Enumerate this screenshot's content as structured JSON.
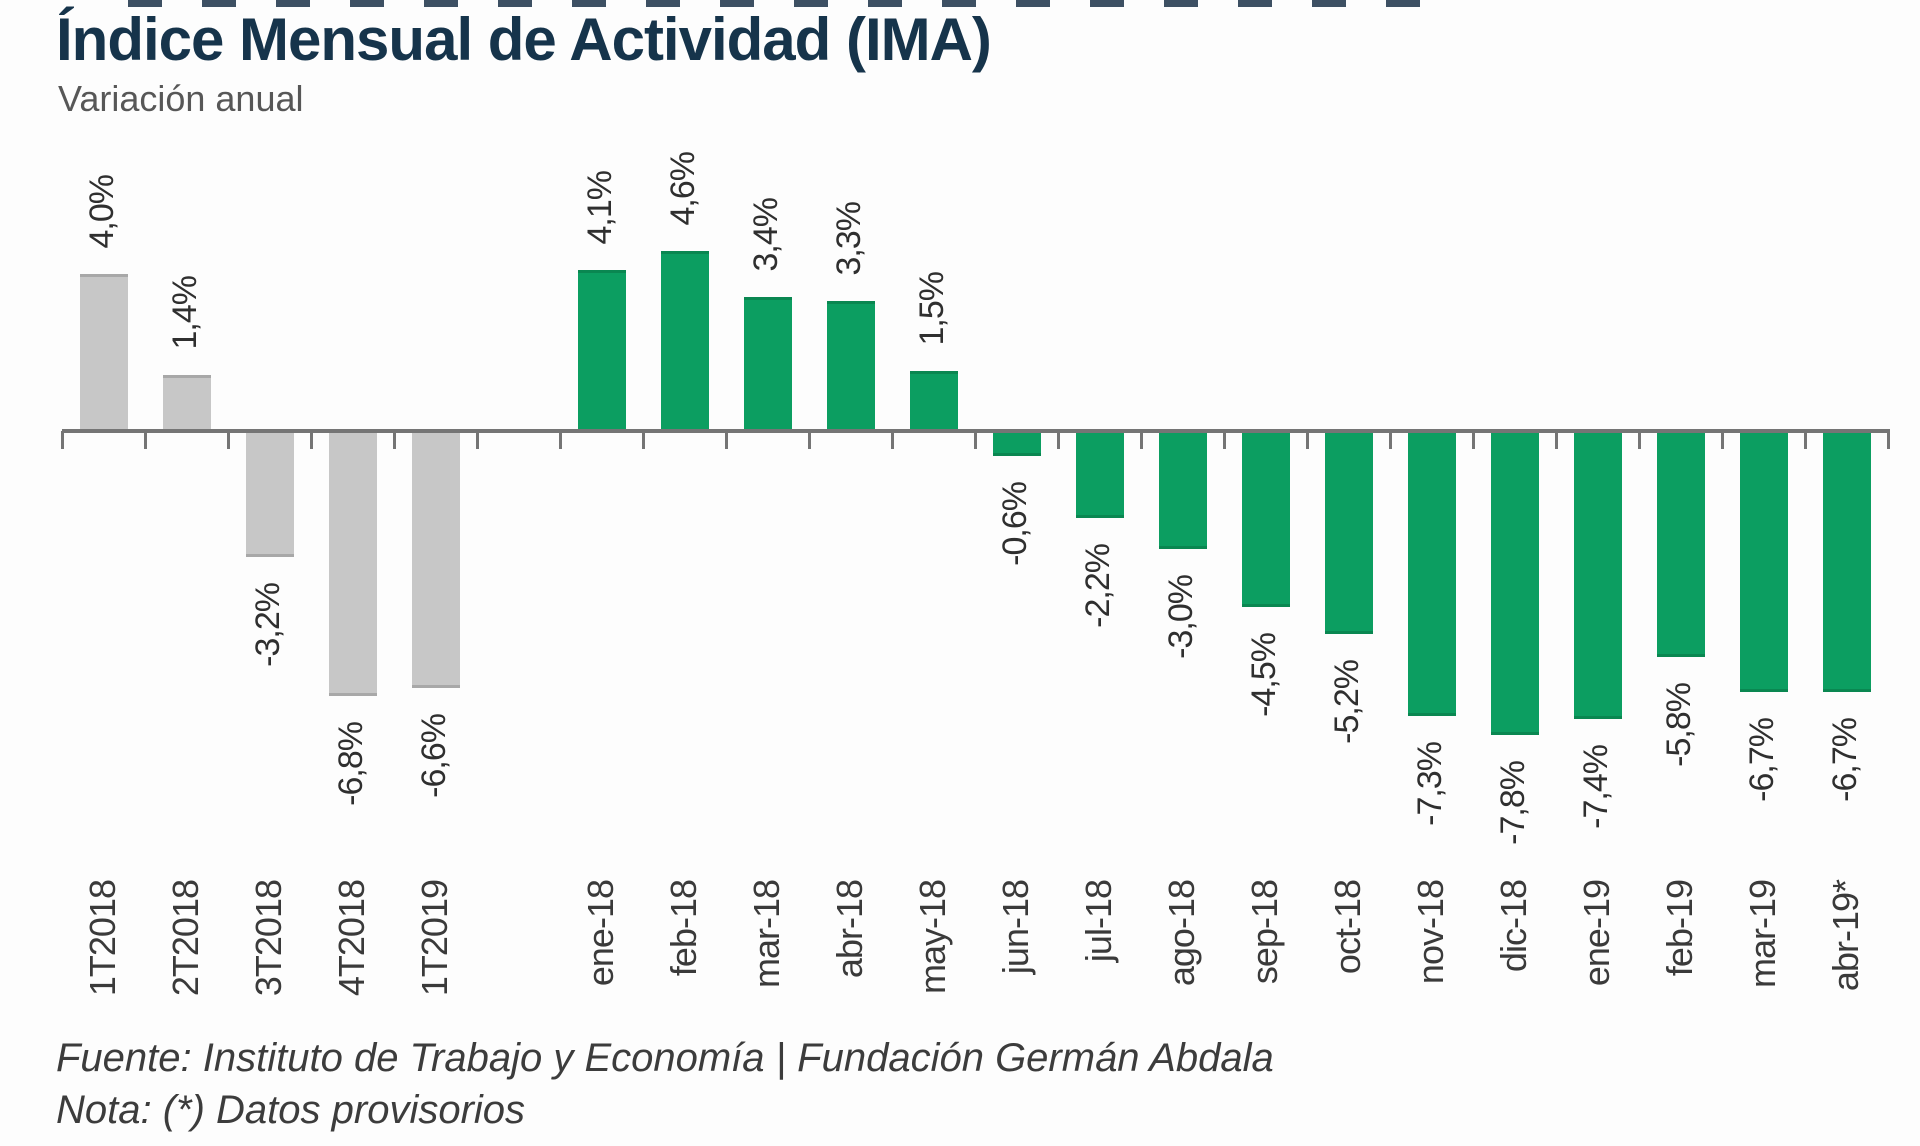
{
  "header": {
    "title": "Índice Mensual de Actividad (IMA)",
    "subtitle": "Variación anual"
  },
  "chart_data": {
    "type": "bar",
    "title": "Índice Mensual de Actividad (IMA)",
    "subtitle": "Variación anual",
    "unit": "%",
    "grid": false,
    "legend": false,
    "y_axis": {
      "visible": false,
      "implied_range": [
        -8,
        5
      ]
    },
    "value_label_rotation": 90,
    "category_label_rotation": 90,
    "series": [
      {
        "id": "quarterly",
        "color": "#c7c7c7",
        "edge_color": "#a8a8a8",
        "categories": [
          "1T2018",
          "2T2018",
          "3T2018",
          "4T2018",
          "1T2019"
        ],
        "values": [
          4.0,
          1.4,
          -3.2,
          -6.8,
          -6.6
        ],
        "labels": [
          "4,0%",
          "1,4%",
          "-3,2%",
          "-6,8%",
          "-6,6%"
        ]
      },
      {
        "id": "monthly",
        "color": "#0c9e61",
        "edge_color": "#0a8751",
        "categories": [
          "ene-18",
          "feb-18",
          "mar-18",
          "abr-18",
          "may-18",
          "jun-18",
          "jul-18",
          "ago-18",
          "sep-18",
          "oct-18",
          "nov-18",
          "dic-18",
          "ene-19",
          "feb-19",
          "mar-19",
          "abr-19*"
        ],
        "values": [
          4.1,
          4.6,
          3.4,
          3.3,
          1.5,
          -0.6,
          -2.2,
          -3.0,
          -4.5,
          -5.2,
          -7.3,
          -7.8,
          -7.4,
          -5.8,
          -6.7,
          -6.7
        ],
        "labels": [
          "4,1%",
          "4,6%",
          "3,4%",
          "3,3%",
          "1,5%",
          "-0,6%",
          "-2,2%",
          "-3,0%",
          "-4,5%",
          "-5,2%",
          "-7,3%",
          "-7,8%",
          "-7,4%",
          "-5,8%",
          "-6,7%",
          "-6,7%"
        ]
      }
    ]
  },
  "footer": {
    "source": "Fuente: Instituto de Trabajo y Economía | Fundación Germán Abdala",
    "note": "Nota: (*) Datos provisorios"
  },
  "colors": {
    "title": "#16344b",
    "subtitle": "#575757",
    "axis": "#757575",
    "value_label": "#2f2f2f",
    "category_label": "#3a3a3a",
    "background": "#fdfdfd"
  }
}
